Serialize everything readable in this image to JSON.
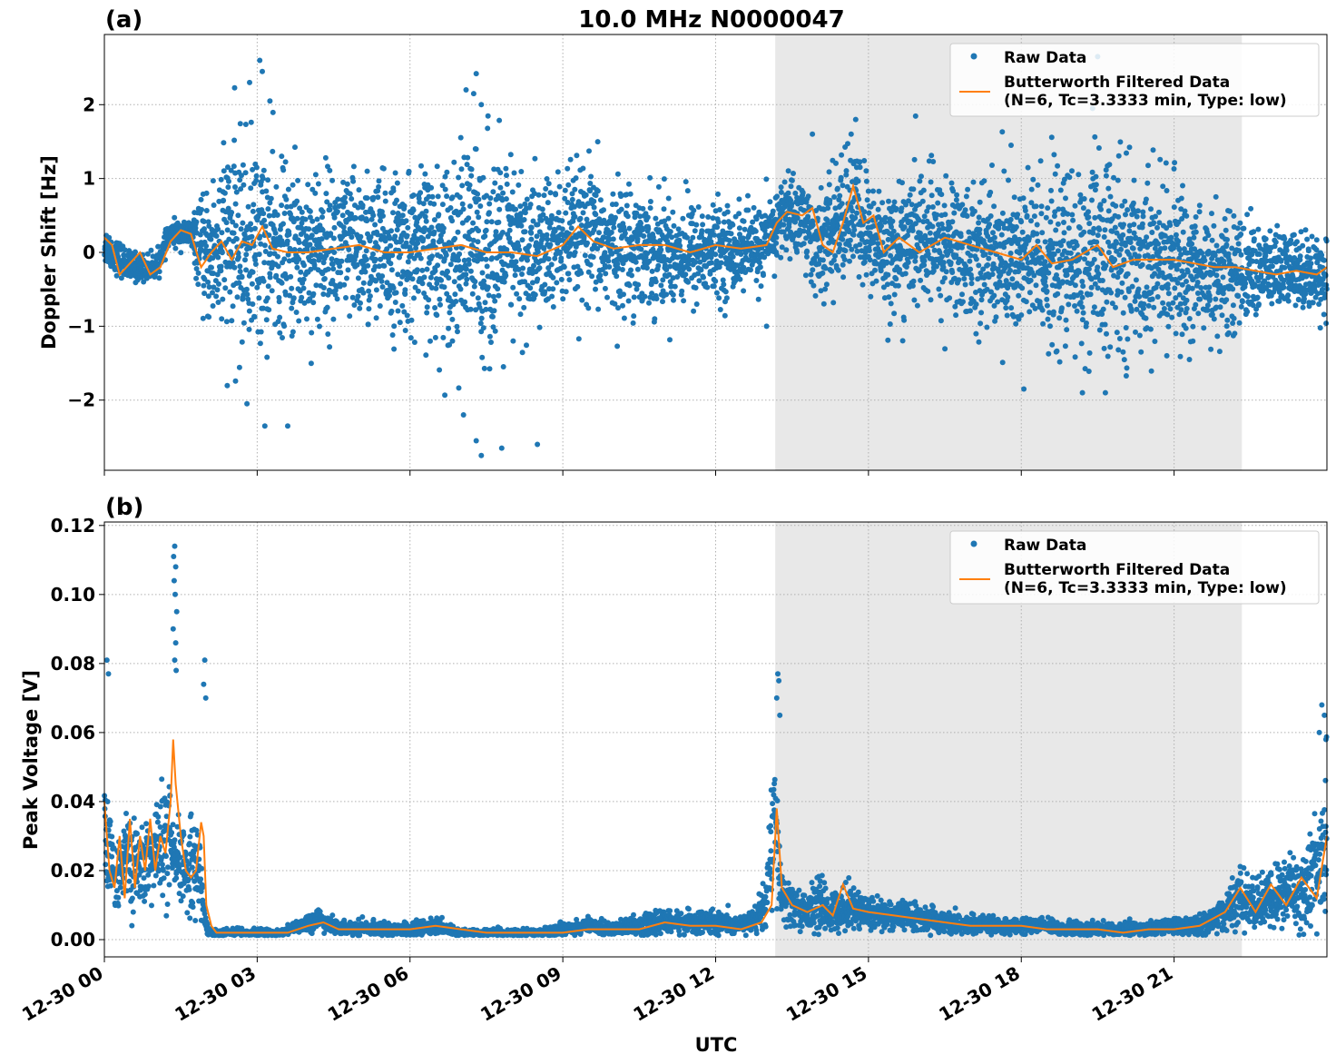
{
  "figure": {
    "title": "10.0 MHz N0000047",
    "xlabel": "UTC"
  },
  "x_ticks": [
    "12-30 00",
    "12-30 03",
    "12-30 06",
    "12-30 09",
    "12-30 12",
    "12-30 15",
    "12-30 18",
    "12-30 21"
  ],
  "chart_data": [
    {
      "type": "scatter",
      "panel_label": "(a)",
      "title": "10.0 MHz N0000047",
      "ylabel": "Doppler Shift [Hz]",
      "xlabel": "",
      "x_unit": "hours UTC since 12-30 00",
      "xlim": [
        0,
        24
      ],
      "ylim": [
        -2.95,
        2.95
      ],
      "yticks": [
        -2,
        -1,
        0,
        1,
        2
      ],
      "ytick_labels": [
        "−2",
        "−1",
        "0",
        "1",
        "2"
      ],
      "grid": true,
      "legend_position": "top-right",
      "shaded_region": [
        13.17,
        22.33
      ],
      "raw_color": "#1f77b4",
      "filtered_color": "#ff7f0e",
      "series": [
        {
          "name": "Raw Data",
          "style": "dots",
          "x": [
            0,
            0.5,
            1.0,
            1.3,
            1.7,
            2.0,
            2.3,
            2.6,
            3.0,
            3.5,
            4.0,
            4.5,
            5.0,
            5.5,
            6.0,
            6.5,
            7.0,
            7.5,
            8.0,
            8.5,
            9.0,
            9.5,
            10.0,
            10.5,
            11.0,
            11.5,
            12.0,
            12.5,
            13.0,
            13.3,
            13.7,
            14.0,
            14.3,
            14.7,
            15.0,
            15.5,
            16.0,
            16.5,
            17.0,
            17.5,
            18.0,
            18.5,
            19.0,
            19.5,
            20.0,
            20.5,
            21.0,
            21.5,
            22.0,
            22.5,
            23.0,
            23.5,
            24.0
          ],
          "center": [
            0.1,
            -0.2,
            -0.2,
            0.25,
            0.25,
            -0.1,
            0.1,
            0.1,
            0.1,
            0.0,
            0.05,
            0.05,
            0.05,
            0.0,
            0.0,
            0.0,
            0.05,
            0.05,
            0.0,
            0.0,
            0.15,
            0.2,
            0.05,
            0.1,
            0.0,
            0.0,
            0.0,
            0.05,
            0.1,
            0.5,
            0.5,
            0.0,
            0.3,
            0.6,
            0.2,
            0.0,
            0.2,
            0.1,
            0.0,
            -0.05,
            -0.1,
            -0.1,
            -0.15,
            -0.1,
            -0.05,
            -0.1,
            -0.15,
            -0.25,
            -0.3,
            -0.25,
            -0.25,
            -0.25,
            -0.3
          ],
          "spread": [
            0.25,
            0.2,
            0.15,
            0.15,
            0.2,
            0.8,
            1.3,
            1.4,
            1.3,
            1.1,
            1.1,
            1.0,
            1.0,
            1.0,
            1.0,
            1.1,
            1.3,
            1.4,
            1.2,
            1.0,
            0.9,
            0.9,
            0.8,
            0.8,
            0.7,
            0.7,
            0.6,
            0.55,
            0.5,
            0.5,
            0.6,
            0.6,
            0.8,
            0.9,
            0.8,
            0.8,
            0.9,
            0.9,
            0.9,
            1.0,
            1.1,
            1.1,
            1.2,
            1.3,
            1.2,
            1.1,
            1.0,
            0.9,
            0.8,
            0.6,
            0.55,
            0.5,
            0.5
          ],
          "outliers": [
            [
              3.05,
              2.6
            ],
            [
              3.1,
              2.45
            ],
            [
              2.85,
              2.3
            ],
            [
              3.25,
              2.05
            ],
            [
              7.3,
              2.42
            ],
            [
              7.1,
              2.2
            ],
            [
              7.25,
              2.15
            ],
            [
              7.4,
              2.0
            ],
            [
              13.9,
              1.6
            ],
            [
              14.75,
              1.8
            ],
            [
              17.8,
              1.45
            ],
            [
              19.5,
              2.65
            ],
            [
              19.4,
              1.95
            ],
            [
              2.8,
              -2.05
            ],
            [
              3.15,
              -2.35
            ],
            [
              3.6,
              -2.35
            ],
            [
              7.3,
              -2.55
            ],
            [
              7.4,
              -2.75
            ],
            [
              7.05,
              -2.2
            ],
            [
              7.8,
              -2.65
            ],
            [
              8.5,
              -2.6
            ],
            [
              13.0,
              -1.0
            ],
            [
              18.05,
              -1.85
            ],
            [
              19.2,
              -1.9
            ],
            [
              19.65,
              -1.9
            ],
            [
              21.3,
              -1.45
            ]
          ]
        },
        {
          "name": "Butterworth Filtered Data\n(N=6, Tc=3.3333 min, Type: low)",
          "style": "line",
          "x": [
            0,
            0.15,
            0.3,
            0.5,
            0.7,
            0.9,
            1.1,
            1.3,
            1.5,
            1.7,
            1.9,
            2.1,
            2.3,
            2.5,
            2.7,
            2.9,
            3.1,
            3.3,
            3.6,
            4.0,
            4.5,
            5.0,
            5.5,
            6.0,
            6.5,
            7.0,
            7.5,
            8.0,
            8.5,
            9.0,
            9.3,
            9.6,
            10.0,
            10.5,
            11.0,
            11.5,
            12.0,
            12.5,
            13.0,
            13.2,
            13.4,
            13.7,
            13.9,
            14.1,
            14.3,
            14.5,
            14.7,
            14.9,
            15.1,
            15.3,
            15.6,
            16.0,
            16.5,
            17.0,
            17.5,
            18.0,
            18.3,
            18.6,
            19.0,
            19.5,
            19.8,
            20.2,
            20.6,
            21.0,
            21.4,
            21.8,
            22.2,
            22.6,
            23.0,
            23.4,
            23.8,
            24.0
          ],
          "y": [
            0.2,
            0.1,
            -0.3,
            -0.15,
            0.0,
            -0.3,
            -0.2,
            0.15,
            0.3,
            0.25,
            -0.2,
            0.0,
            0.15,
            -0.1,
            0.15,
            0.1,
            0.35,
            0.05,
            0.0,
            0.0,
            0.05,
            0.1,
            0.0,
            0.0,
            0.05,
            0.1,
            0.0,
            0.0,
            -0.05,
            0.1,
            0.35,
            0.15,
            0.05,
            0.1,
            0.1,
            0.0,
            0.1,
            0.05,
            0.1,
            0.4,
            0.55,
            0.5,
            0.6,
            0.1,
            0.0,
            0.4,
            0.9,
            0.4,
            0.5,
            0.0,
            0.2,
            0.0,
            0.2,
            0.1,
            0.0,
            -0.1,
            0.1,
            -0.15,
            -0.1,
            0.1,
            -0.2,
            -0.1,
            -0.1,
            -0.1,
            -0.15,
            -0.2,
            -0.2,
            -0.25,
            -0.3,
            -0.25,
            -0.3,
            -0.2
          ]
        }
      ]
    },
    {
      "type": "scatter",
      "panel_label": "(b)",
      "title": "",
      "ylabel": "Peak Voltage [V]",
      "xlabel": "UTC",
      "x_unit": "hours UTC since 12-30 00",
      "xlim": [
        0,
        24
      ],
      "ylim": [
        -0.005,
        0.121
      ],
      "yticks": [
        0.0,
        0.02,
        0.04,
        0.06,
        0.08,
        0.1,
        0.12
      ],
      "ytick_labels": [
        "0.00",
        "0.02",
        "0.04",
        "0.06",
        "0.08",
        "0.10",
        "0.12"
      ],
      "grid": true,
      "legend_position": "top-right",
      "shaded_region": [
        13.17,
        22.33
      ],
      "raw_color": "#1f77b4",
      "filtered_color": "#ff7f0e",
      "series": [
        {
          "name": "Raw Data",
          "style": "dots",
          "x": [
            0,
            0.2,
            0.4,
            0.6,
            0.8,
            1.0,
            1.2,
            1.4,
            1.6,
            1.8,
            2.0,
            2.1,
            2.3,
            2.6,
            3.0,
            3.5,
            3.8,
            4.2,
            4.6,
            5.0,
            5.5,
            6.0,
            6.5,
            7.0,
            7.5,
            8.0,
            8.5,
            9.0,
            9.5,
            10.0,
            10.5,
            11.0,
            11.5,
            12.0,
            12.5,
            12.8,
            13.0,
            13.15,
            13.3,
            13.5,
            13.8,
            14.0,
            14.3,
            14.6,
            15.0,
            15.5,
            16.0,
            16.5,
            17.0,
            17.5,
            18.0,
            18.5,
            19.0,
            19.5,
            20.0,
            20.5,
            21.0,
            21.5,
            22.0,
            22.3,
            22.6,
            23.0,
            23.3,
            23.6,
            24.0
          ],
          "center": [
            0.03,
            0.018,
            0.025,
            0.02,
            0.022,
            0.025,
            0.03,
            0.022,
            0.02,
            0.025,
            0.004,
            0.002,
            0.002,
            0.002,
            0.002,
            0.002,
            0.004,
            0.006,
            0.003,
            0.003,
            0.003,
            0.003,
            0.004,
            0.002,
            0.002,
            0.002,
            0.002,
            0.003,
            0.004,
            0.003,
            0.004,
            0.005,
            0.005,
            0.005,
            0.004,
            0.006,
            0.012,
            0.035,
            0.012,
            0.01,
            0.008,
            0.01,
            0.008,
            0.01,
            0.008,
            0.007,
            0.006,
            0.005,
            0.004,
            0.004,
            0.004,
            0.004,
            0.003,
            0.003,
            0.003,
            0.003,
            0.004,
            0.004,
            0.008,
            0.012,
            0.01,
            0.012,
            0.015,
            0.015,
            0.025
          ],
          "spread": [
            0.015,
            0.01,
            0.012,
            0.012,
            0.01,
            0.012,
            0.02,
            0.01,
            0.012,
            0.015,
            0.003,
            0.001,
            0.001,
            0.001,
            0.001,
            0.001,
            0.002,
            0.003,
            0.002,
            0.002,
            0.002,
            0.002,
            0.002,
            0.001,
            0.001,
            0.001,
            0.001,
            0.002,
            0.002,
            0.002,
            0.003,
            0.003,
            0.003,
            0.003,
            0.002,
            0.004,
            0.008,
            0.02,
            0.008,
            0.006,
            0.005,
            0.008,
            0.006,
            0.006,
            0.005,
            0.004,
            0.004,
            0.003,
            0.003,
            0.002,
            0.002,
            0.002,
            0.002,
            0.002,
            0.002,
            0.002,
            0.002,
            0.003,
            0.005,
            0.008,
            0.007,
            0.009,
            0.012,
            0.012,
            0.018
          ],
          "outliers": [
            [
              0.05,
              0.081
            ],
            [
              0.08,
              0.077
            ],
            [
              1.38,
              0.114
            ],
            [
              1.36,
              0.111
            ],
            [
              1.4,
              0.108
            ],
            [
              1.37,
              0.104
            ],
            [
              1.39,
              0.1
            ],
            [
              1.42,
              0.095
            ],
            [
              1.35,
              0.09
            ],
            [
              1.4,
              0.086
            ],
            [
              1.38,
              0.081
            ],
            [
              1.41,
              0.078
            ],
            [
              1.97,
              0.081
            ],
            [
              1.95,
              0.074
            ],
            [
              1.99,
              0.07
            ],
            [
              13.22,
              0.077
            ],
            [
              13.24,
              0.075
            ],
            [
              13.2,
              0.07
            ],
            [
              13.26,
              0.065
            ],
            [
              23.9,
              0.068
            ],
            [
              23.95,
              0.065
            ],
            [
              23.85,
              0.06
            ],
            [
              23.98,
              0.058
            ]
          ]
        },
        {
          "name": "Butterworth Filtered Data\n(N=6, Tc=3.3333 min, Type: low)",
          "style": "line",
          "x": [
            0,
            0.1,
            0.2,
            0.3,
            0.4,
            0.5,
            0.6,
            0.7,
            0.8,
            0.9,
            1.0,
            1.1,
            1.2,
            1.3,
            1.35,
            1.4,
            1.5,
            1.6,
            1.7,
            1.8,
            1.9,
            1.95,
            2.0,
            2.1,
            2.2,
            2.4,
            2.8,
            3.2,
            3.6,
            4.0,
            4.3,
            4.6,
            5.0,
            5.5,
            6.0,
            6.5,
            7.0,
            7.5,
            8.0,
            8.5,
            9.0,
            9.5,
            10.0,
            10.5,
            11.0,
            11.5,
            12.0,
            12.5,
            12.9,
            13.1,
            13.2,
            13.3,
            13.5,
            13.8,
            14.1,
            14.3,
            14.5,
            14.7,
            15.0,
            15.5,
            16.0,
            16.5,
            17.0,
            17.5,
            18.0,
            18.5,
            19.0,
            19.5,
            20.0,
            20.5,
            21.0,
            21.5,
            22.0,
            22.3,
            22.6,
            22.9,
            23.2,
            23.5,
            23.8,
            24.0
          ],
          "y": [
            0.04,
            0.02,
            0.015,
            0.03,
            0.012,
            0.035,
            0.015,
            0.03,
            0.02,
            0.035,
            0.02,
            0.03,
            0.025,
            0.04,
            0.058,
            0.045,
            0.03,
            0.02,
            0.018,
            0.02,
            0.034,
            0.03,
            0.01,
            0.004,
            0.002,
            0.002,
            0.002,
            0.002,
            0.002,
            0.004,
            0.005,
            0.003,
            0.003,
            0.003,
            0.003,
            0.004,
            0.003,
            0.002,
            0.002,
            0.002,
            0.002,
            0.003,
            0.003,
            0.003,
            0.005,
            0.004,
            0.004,
            0.003,
            0.005,
            0.01,
            0.038,
            0.015,
            0.01,
            0.008,
            0.01,
            0.007,
            0.016,
            0.009,
            0.008,
            0.007,
            0.006,
            0.005,
            0.004,
            0.004,
            0.004,
            0.003,
            0.003,
            0.003,
            0.002,
            0.003,
            0.003,
            0.004,
            0.008,
            0.015,
            0.008,
            0.016,
            0.01,
            0.018,
            0.012,
            0.03
          ]
        }
      ]
    }
  ]
}
